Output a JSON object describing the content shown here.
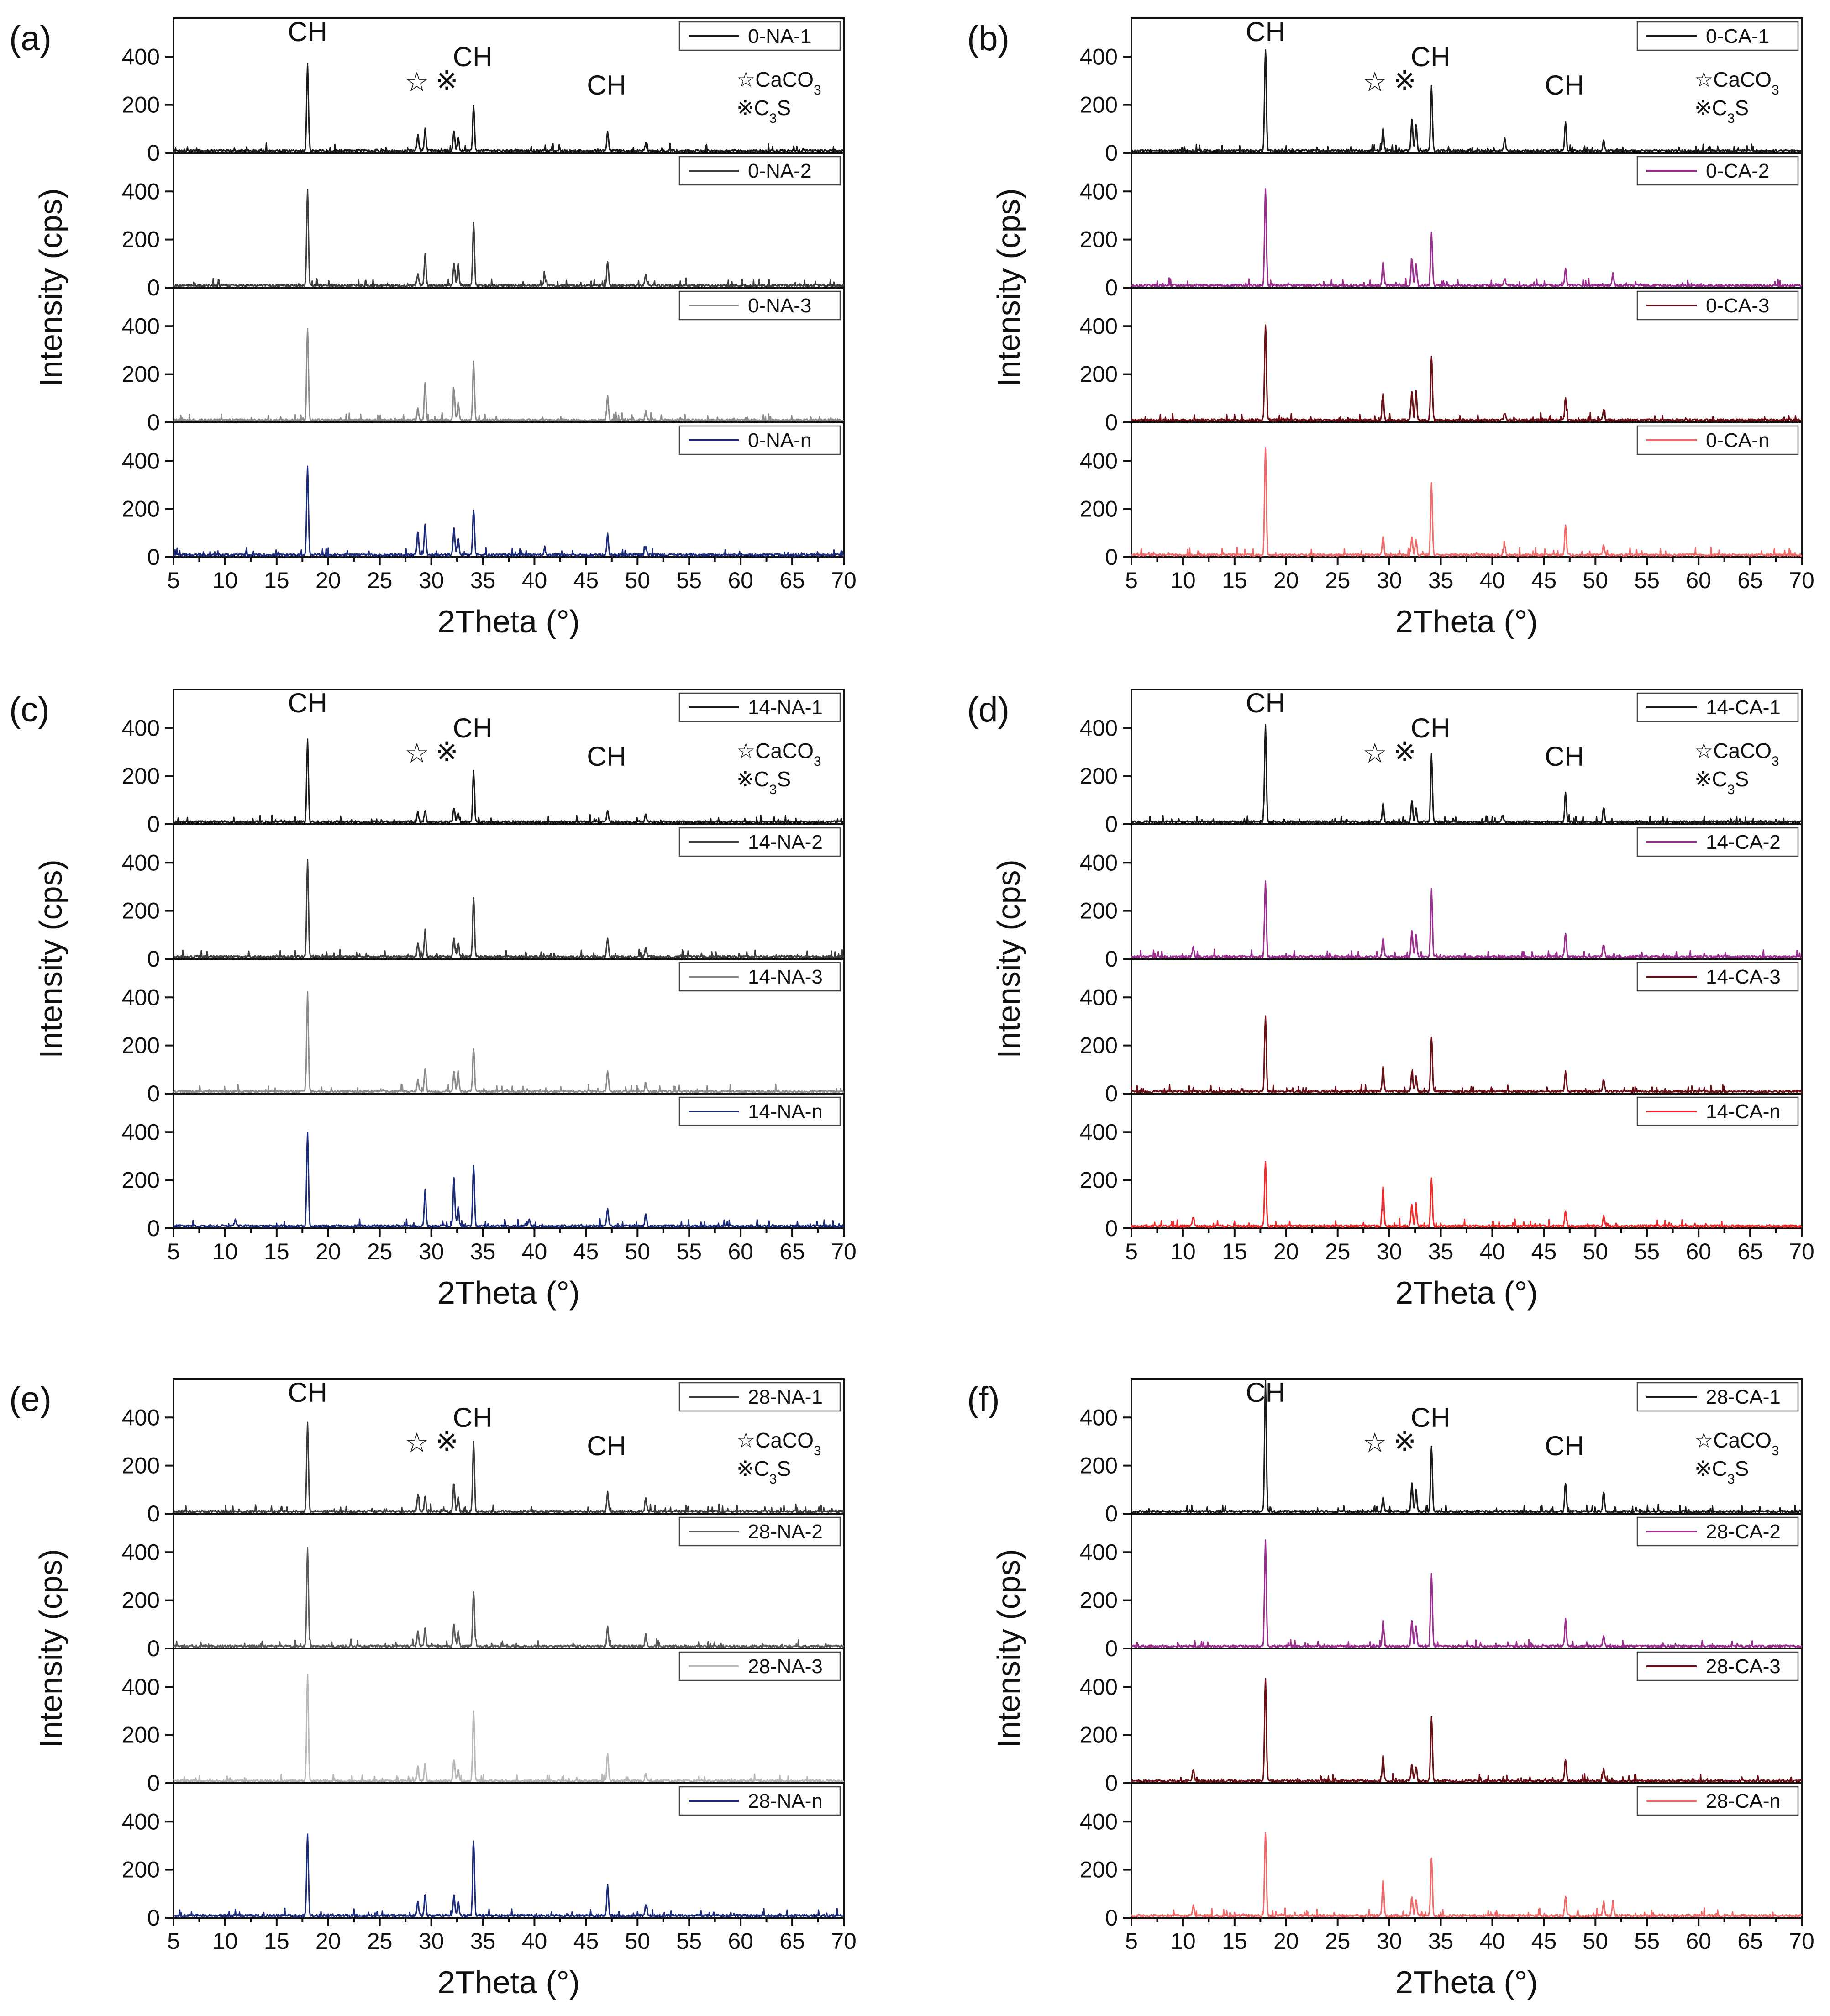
{
  "chart_data": [
    {
      "type": "line",
      "panel_label": "(a)",
      "xlabel": "2Theta (°)",
      "ylabel": "Intensity (cps)",
      "xlim": [
        5,
        70
      ],
      "xticks": [
        5,
        10,
        15,
        20,
        25,
        30,
        35,
        40,
        45,
        50,
        55,
        60,
        65,
        70
      ],
      "ylim": [
        0,
        560
      ],
      "yticks": [
        0,
        200,
        400
      ],
      "annotations": [
        "CH",
        "☆",
        "※",
        "CH",
        "CH"
      ],
      "phase_legend": [
        "☆CaCO3",
        "※C3S"
      ],
      "series": [
        {
          "name": "0-NA-1",
          "color": "#1a1a1a",
          "peaks": [
            [
              18.0,
              360
            ],
            [
              28.7,
              70
            ],
            [
              29.4,
              90
            ],
            [
              32.2,
              85
            ],
            [
              32.6,
              60
            ],
            [
              34.1,
              190
            ],
            [
              47.1,
              80
            ],
            [
              50.8,
              30
            ]
          ]
        },
        {
          "name": "0-NA-2",
          "color": "#3d3d3d",
          "peaks": [
            [
              18.0,
              400
            ],
            [
              28.7,
              50
            ],
            [
              29.4,
              130
            ],
            [
              32.2,
              90
            ],
            [
              32.6,
              90
            ],
            [
              34.1,
              260
            ],
            [
              41.0,
              40
            ],
            [
              47.1,
              100
            ],
            [
              50.8,
              50
            ]
          ]
        },
        {
          "name": "0-NA-3",
          "color": "#8c8c8c",
          "peaks": [
            [
              18.0,
              380
            ],
            [
              28.7,
              50
            ],
            [
              29.4,
              160
            ],
            [
              32.2,
              130
            ],
            [
              32.6,
              70
            ],
            [
              34.1,
              240
            ],
            [
              47.1,
              100
            ],
            [
              50.8,
              40
            ]
          ]
        },
        {
          "name": "0-NA-n",
          "color": "#1c2a7a",
          "peaks": [
            [
              18.0,
              370
            ],
            [
              28.7,
              100
            ],
            [
              29.4,
              130
            ],
            [
              32.2,
              110
            ],
            [
              32.6,
              70
            ],
            [
              34.1,
              190
            ],
            [
              41.0,
              30
            ],
            [
              47.1,
              80
            ],
            [
              50.8,
              40
            ]
          ]
        }
      ]
    },
    {
      "type": "line",
      "panel_label": "(b)",
      "xlabel": "2Theta (°)",
      "ylabel": "Intensity (cps)",
      "xlim": [
        5,
        70
      ],
      "xticks": [
        5,
        10,
        15,
        20,
        25,
        30,
        35,
        40,
        45,
        50,
        55,
        60,
        65,
        70
      ],
      "ylim": [
        0,
        560
      ],
      "yticks": [
        0,
        200,
        400
      ],
      "annotations": [
        "CH",
        "☆",
        "※",
        "CH",
        "CH"
      ],
      "phase_legend": [
        "☆CaCO3",
        "※C3S"
      ],
      "series": [
        {
          "name": "0-CA-1",
          "color": "#1a1a1a",
          "peaks": [
            [
              18.0,
              420
            ],
            [
              29.4,
              90
            ],
            [
              32.2,
              130
            ],
            [
              32.6,
              110
            ],
            [
              34.1,
              270
            ],
            [
              41.2,
              50
            ],
            [
              47.1,
              120
            ],
            [
              50.8,
              40
            ]
          ]
        },
        {
          "name": "0-CA-2",
          "color": "#9a2e8e",
          "peaks": [
            [
              18.0,
              400
            ],
            [
              29.4,
              100
            ],
            [
              32.2,
              110
            ],
            [
              32.6,
              90
            ],
            [
              34.1,
              220
            ],
            [
              41.2,
              30
            ],
            [
              47.1,
              70
            ],
            [
              51.7,
              50
            ]
          ]
        },
        {
          "name": "0-CA-3",
          "color": "#6b0f14",
          "peaks": [
            [
              18.0,
              400
            ],
            [
              29.4,
              110
            ],
            [
              32.2,
              120
            ],
            [
              32.6,
              120
            ],
            [
              34.1,
              270
            ],
            [
              41.2,
              30
            ],
            [
              47.1,
              90
            ],
            [
              50.8,
              40
            ]
          ]
        },
        {
          "name": "0-CA-n",
          "color": "#f06a6a",
          "peaks": [
            [
              18.0,
              440
            ],
            [
              29.4,
              80
            ],
            [
              32.2,
              70
            ],
            [
              32.6,
              60
            ],
            [
              34.1,
              300
            ],
            [
              41.2,
              40
            ],
            [
              47.1,
              120
            ],
            [
              50.8,
              40
            ]
          ]
        }
      ]
    },
    {
      "type": "line",
      "panel_label": "(c)",
      "xlabel": "2Theta (°)",
      "ylabel": "Intensity (cps)",
      "xlim": [
        5,
        70
      ],
      "xticks": [
        5,
        10,
        15,
        20,
        25,
        30,
        35,
        40,
        45,
        50,
        55,
        60,
        65,
        70
      ],
      "ylim": [
        0,
        560
      ],
      "yticks": [
        0,
        200,
        400
      ],
      "annotations": [
        "CH",
        "☆",
        "※",
        "CH",
        "CH"
      ],
      "phase_legend": [
        "☆CaCO3",
        "※C3S"
      ],
      "series": [
        {
          "name": "14-NA-1",
          "color": "#1a1a1a",
          "peaks": [
            [
              18.0,
              340
            ],
            [
              28.7,
              40
            ],
            [
              29.4,
              50
            ],
            [
              32.2,
              60
            ],
            [
              32.6,
              40
            ],
            [
              34.1,
              210
            ],
            [
              47.1,
              50
            ],
            [
              50.8,
              30
            ]
          ]
        },
        {
          "name": "14-NA-2",
          "color": "#3d3d3d",
          "peaks": [
            [
              18.0,
              400
            ],
            [
              28.7,
              60
            ],
            [
              29.4,
              110
            ],
            [
              32.2,
              80
            ],
            [
              32.6,
              60
            ],
            [
              34.1,
              250
            ],
            [
              47.1,
              80
            ],
            [
              50.8,
              40
            ]
          ]
        },
        {
          "name": "14-NA-3",
          "color": "#8c8c8c",
          "peaks": [
            [
              18.0,
              410
            ],
            [
              28.7,
              50
            ],
            [
              29.4,
              100
            ],
            [
              32.2,
              80
            ],
            [
              32.6,
              80
            ],
            [
              34.1,
              180
            ],
            [
              47.1,
              90
            ],
            [
              50.8,
              40
            ]
          ]
        },
        {
          "name": "14-NA-n",
          "color": "#1c2a7a",
          "peaks": [
            [
              18.0,
              390
            ],
            [
              11.0,
              30
            ],
            [
              29.4,
              150
            ],
            [
              32.2,
              200
            ],
            [
              32.6,
              80
            ],
            [
              34.1,
              250
            ],
            [
              39.5,
              30
            ],
            [
              47.1,
              70
            ],
            [
              50.8,
              50
            ]
          ]
        }
      ]
    },
    {
      "type": "line",
      "panel_label": "(d)",
      "xlabel": "2Theta (°)",
      "ylabel": "Intensity (cps)",
      "xlim": [
        5,
        70
      ],
      "xticks": [
        5,
        10,
        15,
        20,
        25,
        30,
        35,
        40,
        45,
        50,
        55,
        60,
        65,
        70
      ],
      "ylim": [
        0,
        560
      ],
      "yticks": [
        0,
        200,
        400
      ],
      "annotations": [
        "CH",
        "☆",
        "※",
        "CH",
        "CH"
      ],
      "phase_legend": [
        "☆CaCO3",
        "※C3S"
      ],
      "series": [
        {
          "name": "14-CA-1",
          "color": "#1a1a1a",
          "peaks": [
            [
              18.0,
              400
            ],
            [
              29.4,
              80
            ],
            [
              32.2,
              90
            ],
            [
              32.6,
              60
            ],
            [
              34.1,
              280
            ],
            [
              41.0,
              30
            ],
            [
              47.1,
              120
            ],
            [
              50.8,
              60
            ]
          ]
        },
        {
          "name": "14-CA-2",
          "color": "#9a2e8e",
          "peaks": [
            [
              18.0,
              310
            ],
            [
              11.0,
              40
            ],
            [
              29.4,
              80
            ],
            [
              32.2,
              110
            ],
            [
              32.6,
              90
            ],
            [
              34.1,
              280
            ],
            [
              47.1,
              100
            ],
            [
              50.8,
              50
            ]
          ]
        },
        {
          "name": "14-CA-3",
          "color": "#6b0f14",
          "peaks": [
            [
              18.0,
              310
            ],
            [
              29.4,
              100
            ],
            [
              32.2,
              80
            ],
            [
              32.6,
              60
            ],
            [
              34.1,
              230
            ],
            [
              47.1,
              80
            ],
            [
              50.8,
              50
            ]
          ]
        },
        {
          "name": "14-CA-n",
          "color": "#ee2a2a",
          "peaks": [
            [
              18.0,
              270
            ],
            [
              11.0,
              40
            ],
            [
              29.4,
              160
            ],
            [
              32.2,
              90
            ],
            [
              32.6,
              80
            ],
            [
              34.1,
              200
            ],
            [
              47.1,
              60
            ],
            [
              50.8,
              40
            ]
          ]
        }
      ]
    },
    {
      "type": "line",
      "panel_label": "(e)",
      "xlabel": "2Theta (°)",
      "ylabel": "Intensity (cps)",
      "xlim": [
        5,
        70
      ],
      "xticks": [
        5,
        10,
        15,
        20,
        25,
        30,
        35,
        40,
        45,
        50,
        55,
        60,
        65,
        70
      ],
      "ylim": [
        0,
        560
      ],
      "yticks": [
        0,
        200,
        400
      ],
      "annotations": [
        "CH",
        "☆",
        "※",
        "CH",
        "CH"
      ],
      "phase_legend": [
        "☆CaCO3",
        "※C3S"
      ],
      "series": [
        {
          "name": "28-NA-1",
          "color": "#3a3a3a",
          "peaks": [
            [
              18.0,
              370
            ],
            [
              28.7,
              70
            ],
            [
              29.4,
              60
            ],
            [
              32.2,
              110
            ],
            [
              32.6,
              60
            ],
            [
              34.1,
              290
            ],
            [
              47.1,
              80
            ],
            [
              50.8,
              60
            ]
          ]
        },
        {
          "name": "28-NA-2",
          "color": "#5a5a5a",
          "peaks": [
            [
              18.0,
              410
            ],
            [
              28.7,
              60
            ],
            [
              29.4,
              80
            ],
            [
              32.2,
              90
            ],
            [
              32.6,
              60
            ],
            [
              34.1,
              230
            ],
            [
              47.1,
              80
            ],
            [
              50.8,
              50
            ]
          ]
        },
        {
          "name": "28-NA-3",
          "color": "#b8b8b8",
          "peaks": [
            [
              18.0,
              440
            ],
            [
              28.7,
              60
            ],
            [
              29.4,
              70
            ],
            [
              32.2,
              90
            ],
            [
              32.6,
              50
            ],
            [
              34.1,
              290
            ],
            [
              47.1,
              110
            ],
            [
              50.8,
              30
            ]
          ]
        },
        {
          "name": "28-NA-n",
          "color": "#1c2a7a",
          "peaks": [
            [
              18.0,
              340
            ],
            [
              28.7,
              60
            ],
            [
              29.4,
              90
            ],
            [
              32.2,
              90
            ],
            [
              32.6,
              60
            ],
            [
              34.1,
              310
            ],
            [
              47.1,
              130
            ],
            [
              50.8,
              40
            ]
          ]
        }
      ]
    },
    {
      "type": "line",
      "panel_label": "(f)",
      "xlabel": "2Theta (°)",
      "ylabel": "Intensity (cps)",
      "xlim": [
        5,
        70
      ],
      "xticks": [
        5,
        10,
        15,
        20,
        25,
        30,
        35,
        40,
        45,
        50,
        55,
        60,
        65,
        70
      ],
      "ylim": [
        0,
        560
      ],
      "yticks": [
        0,
        200,
        400
      ],
      "annotations": [
        "CH",
        "☆",
        "※",
        "CH",
        "CH"
      ],
      "phase_legend": [
        "☆CaCO3",
        "※C3S"
      ],
      "series": [
        {
          "name": "28-CA-1",
          "color": "#1a1a1a",
          "peaks": [
            [
              18.0,
              540
            ],
            [
              29.4,
              60
            ],
            [
              32.2,
              120
            ],
            [
              32.6,
              90
            ],
            [
              34.1,
              270
            ],
            [
              47.1,
              120
            ],
            [
              50.8,
              80
            ]
          ]
        },
        {
          "name": "28-CA-2",
          "color": "#9a2e8e",
          "peaks": [
            [
              18.0,
              440
            ],
            [
              29.4,
              100
            ],
            [
              32.2,
              110
            ],
            [
              32.6,
              80
            ],
            [
              34.1,
              300
            ],
            [
              47.1,
              110
            ],
            [
              50.8,
              40
            ]
          ]
        },
        {
          "name": "28-CA-3",
          "color": "#6b0f14",
          "peaks": [
            [
              18.0,
              430
            ],
            [
              11.0,
              50
            ],
            [
              29.4,
              100
            ],
            [
              32.2,
              70
            ],
            [
              32.6,
              60
            ],
            [
              34.1,
              270
            ],
            [
              47.1,
              90
            ],
            [
              50.8,
              50
            ]
          ]
        },
        {
          "name": "28-CA-n",
          "color": "#f06a6a",
          "peaks": [
            [
              18.0,
              350
            ],
            [
              11.0,
              40
            ],
            [
              29.4,
              150
            ],
            [
              32.2,
              80
            ],
            [
              32.6,
              70
            ],
            [
              34.1,
              240
            ],
            [
              47.1,
              80
            ],
            [
              50.8,
              60
            ],
            [
              51.7,
              60
            ]
          ]
        }
      ]
    }
  ]
}
